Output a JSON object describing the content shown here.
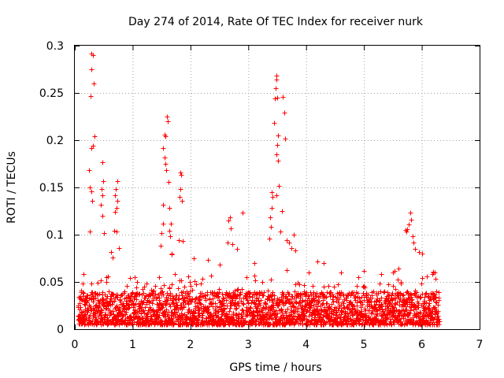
{
  "chart_data": {
    "type": "scatter",
    "title": "Day 274 of 2014, Rate Of TEC Index for receiver nurk",
    "xlabel": "GPS time / hours",
    "ylabel": "ROTI / TECUs",
    "xlim": [
      0,
      7
    ],
    "ylim": [
      0,
      0.3
    ],
    "grid": true,
    "marker": "+",
    "point_color": "#ff0000",
    "x_ticks": [
      "0",
      "1",
      "2",
      "3",
      "4",
      "5",
      "6",
      "7"
    ],
    "y_ticks": [
      "0",
      "0.05",
      "0.1",
      "0.15",
      "0.2",
      "0.25",
      "0.3"
    ],
    "series": [
      {
        "name": "ROTI",
        "x_range": [
          0.05,
          6.3
        ],
        "baseline_band": [
          0.005,
          0.04
        ],
        "points": [
          [
            0.28,
            0.292
          ],
          [
            0.31,
            0.29
          ],
          [
            0.29,
            0.275
          ],
          [
            0.33,
            0.26
          ],
          [
            0.27,
            0.247
          ],
          [
            0.34,
            0.204
          ],
          [
            0.32,
            0.194
          ],
          [
            0.29,
            0.192
          ],
          [
            0.25,
            0.168
          ],
          [
            0.26,
            0.15
          ],
          [
            0.28,
            0.146
          ],
          [
            0.3,
            0.136
          ],
          [
            0.26,
            0.103
          ],
          [
            0.47,
            0.177
          ],
          [
            0.49,
            0.157
          ],
          [
            0.46,
            0.148
          ],
          [
            0.48,
            0.142
          ],
          [
            0.45,
            0.132
          ],
          [
            0.47,
            0.12
          ],
          [
            0.51,
            0.102
          ],
          [
            0.63,
            0.082
          ],
          [
            0.65,
            0.076
          ],
          [
            0.73,
            0.157
          ],
          [
            0.71,
            0.148
          ],
          [
            0.69,
            0.142
          ],
          [
            0.74,
            0.136
          ],
          [
            0.72,
            0.128
          ],
          [
            0.7,
            0.124
          ],
          [
            0.68,
            0.104
          ],
          [
            0.72,
            0.103
          ],
          [
            0.76,
            0.086
          ],
          [
            1.53,
            0.132
          ],
          [
            1.52,
            0.112
          ],
          [
            1.5,
            0.102
          ],
          [
            1.48,
            0.088
          ],
          [
            1.55,
            0.206
          ],
          [
            1.57,
            0.204
          ],
          [
            1.53,
            0.192
          ],
          [
            1.55,
            0.182
          ],
          [
            1.56,
            0.175
          ],
          [
            1.58,
            0.168
          ],
          [
            1.6,
            0.225
          ],
          [
            1.61,
            0.22
          ],
          [
            1.62,
            0.156
          ],
          [
            1.64,
            0.128
          ],
          [
            1.66,
            0.112
          ],
          [
            1.63,
            0.104
          ],
          [
            1.65,
            0.098
          ],
          [
            1.68,
            0.08
          ],
          [
            1.67,
            0.079
          ],
          [
            1.83,
            0.166
          ],
          [
            1.84,
            0.163
          ],
          [
            1.82,
            0.148
          ],
          [
            1.81,
            0.14
          ],
          [
            1.85,
            0.136
          ],
          [
            1.8,
            0.094
          ],
          [
            1.86,
            0.093
          ],
          [
            2.68,
            0.118
          ],
          [
            2.66,
            0.115
          ],
          [
            2.7,
            0.107
          ],
          [
            2.64,
            0.092
          ],
          [
            2.72,
            0.09
          ],
          [
            2.9,
            0.123
          ],
          [
            3.4,
            0.145
          ],
          [
            3.42,
            0.14
          ],
          [
            3.41,
            0.128
          ],
          [
            3.38,
            0.118
          ],
          [
            3.39,
            0.108
          ],
          [
            3.36,
            0.096
          ],
          [
            3.45,
            0.218
          ],
          [
            3.48,
            0.268
          ],
          [
            3.49,
            0.264
          ],
          [
            3.47,
            0.255
          ],
          [
            3.46,
            0.244
          ],
          [
            3.5,
            0.245
          ],
          [
            3.51,
            0.205
          ],
          [
            3.5,
            0.195
          ],
          [
            3.48,
            0.185
          ],
          [
            3.52,
            0.178
          ],
          [
            3.53,
            0.152
          ],
          [
            3.49,
            0.142
          ],
          [
            3.6,
            0.246
          ],
          [
            3.62,
            0.229
          ],
          [
            3.64,
            0.202
          ],
          [
            3.58,
            0.125
          ],
          [
            3.56,
            0.103
          ],
          [
            3.66,
            0.094
          ],
          [
            3.7,
            0.092
          ],
          [
            3.74,
            0.086
          ],
          [
            3.79,
            0.1
          ],
          [
            3.81,
            0.083
          ],
          [
            5.8,
            0.123
          ],
          [
            5.82,
            0.116
          ],
          [
            5.78,
            0.111
          ],
          [
            5.75,
            0.106
          ],
          [
            5.84,
            0.098
          ],
          [
            5.86,
            0.092
          ],
          [
            5.88,
            0.085
          ],
          [
            5.72,
            0.105
          ],
          [
            5.74,
            0.103
          ],
          [
            5.95,
            0.082
          ],
          [
            6.0,
            0.08
          ],
          [
            6.2,
            0.061
          ],
          [
            6.22,
            0.06
          ],
          [
            2.05,
            0.075
          ],
          [
            2.3,
            0.073
          ],
          [
            2.8,
            0.085
          ],
          [
            3.1,
            0.07
          ],
          [
            4.2,
            0.072
          ],
          [
            4.3,
            0.07
          ],
          [
            4.9,
            0.055
          ],
          [
            5.3,
            0.058
          ],
          [
            5.5,
            0.06
          ],
          [
            5.6,
            0.064
          ],
          [
            0.15,
            0.058
          ],
          [
            0.55,
            0.05
          ],
          [
            0.9,
            0.046
          ],
          [
            1.2,
            0.045
          ],
          [
            2.5,
            0.068
          ],
          [
            4.6,
            0.06
          ]
        ]
      }
    ]
  }
}
